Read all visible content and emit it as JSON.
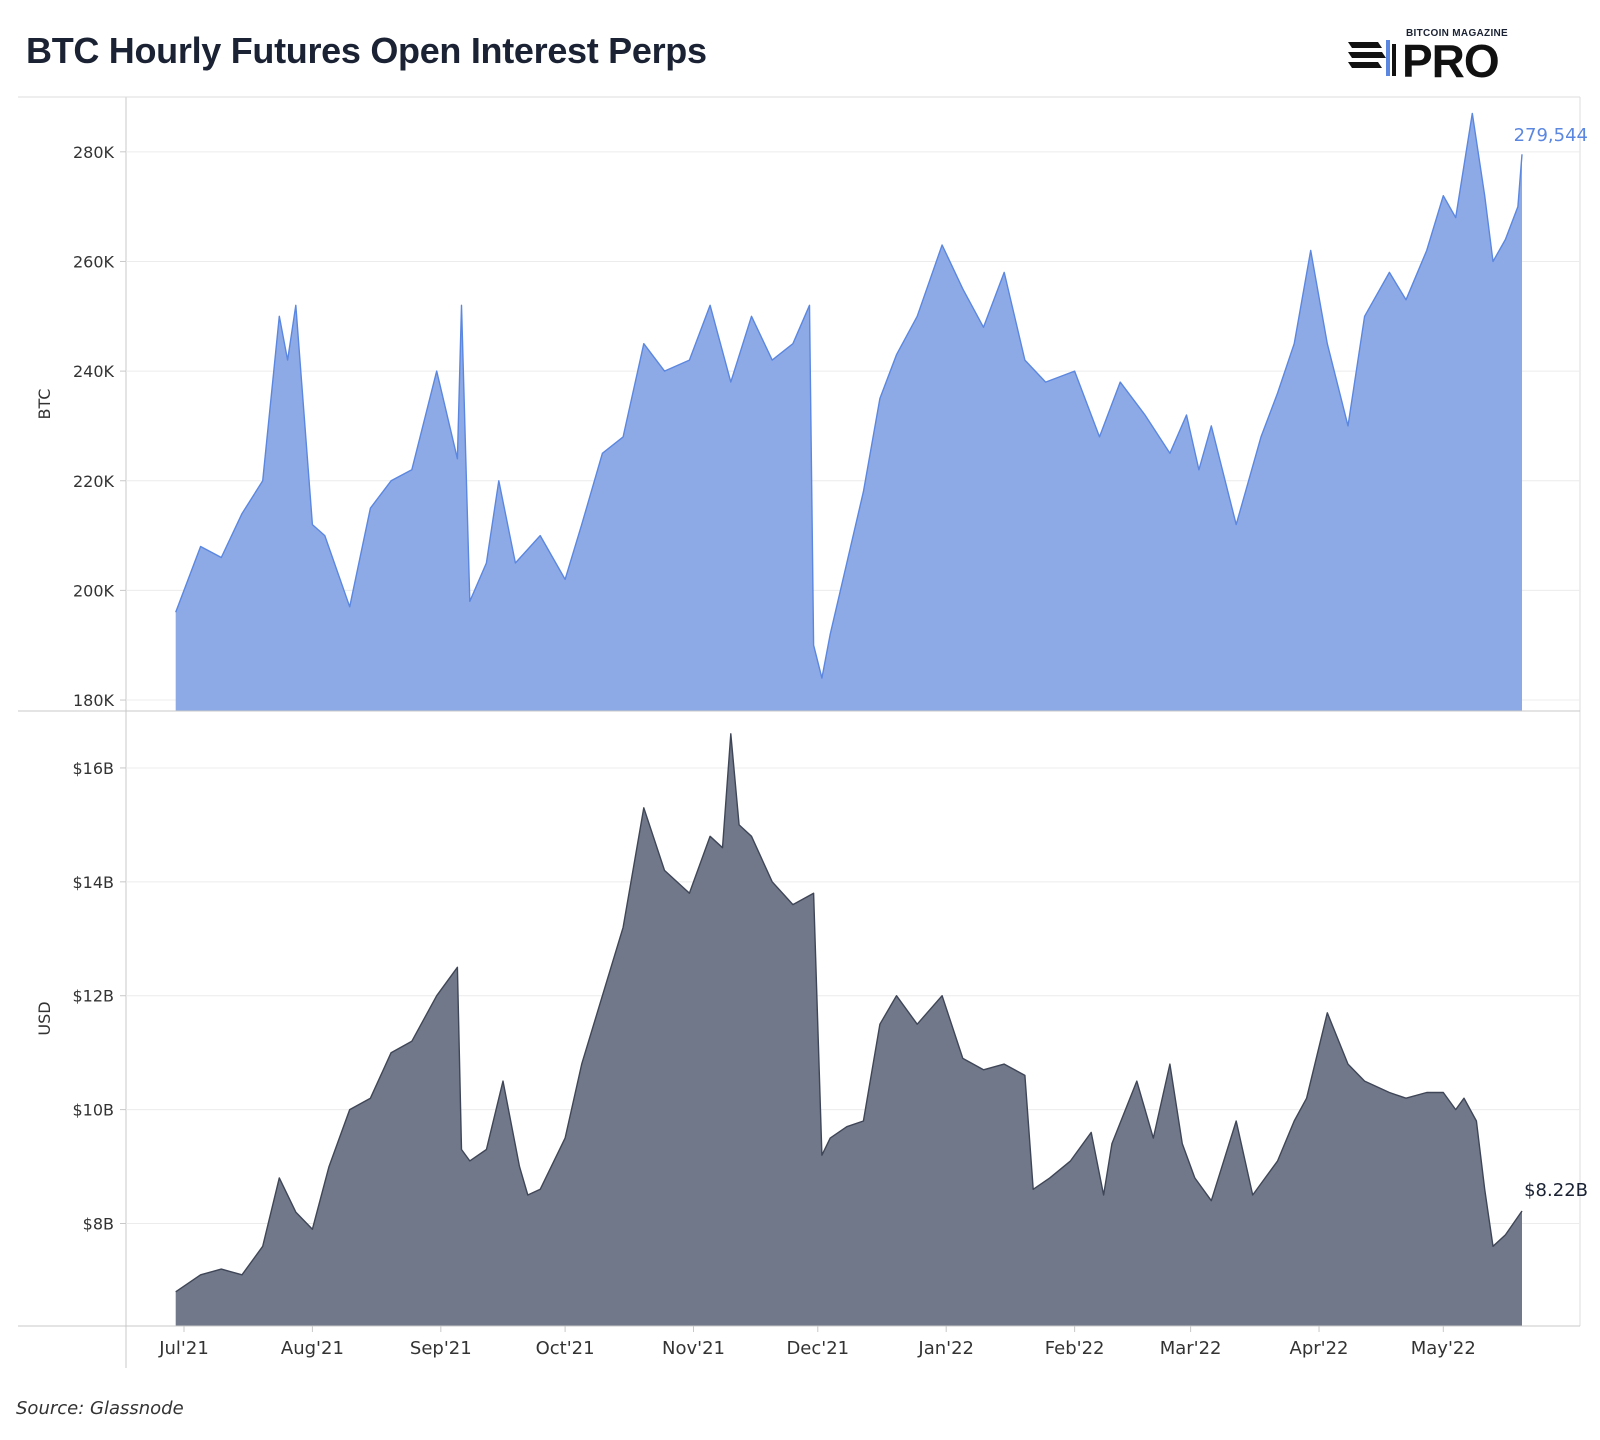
{
  "header": {
    "title": "BTC Hourly Futures Open Interest Perps",
    "logo_small": "BITCOIN MAGAZINE",
    "logo_big": "PRO"
  },
  "footer": {
    "source": "Source: Glassnode"
  },
  "chart_data": [
    {
      "type": "area",
      "ylabel": "BTC",
      "ylim": [
        178000,
        290000
      ],
      "yticks": [
        180000,
        200000,
        220000,
        240000,
        260000,
        280000
      ],
      "ytick_labels": [
        "180K",
        "200K",
        "220K",
        "240K",
        "260K",
        "280K"
      ],
      "color": "#5b87e0",
      "fill": "#8eaae6",
      "last_label": "279,544",
      "x": [
        "2021-06-29",
        "2021-07-05",
        "2021-07-10",
        "2021-07-15",
        "2021-07-20",
        "2021-07-24",
        "2021-07-26",
        "2021-07-28",
        "2021-08-01",
        "2021-08-04",
        "2021-08-10",
        "2021-08-15",
        "2021-08-20",
        "2021-08-25",
        "2021-08-31",
        "2021-09-05",
        "2021-09-06",
        "2021-09-08",
        "2021-09-12",
        "2021-09-15",
        "2021-09-19",
        "2021-09-25",
        "2021-10-01",
        "2021-10-05",
        "2021-10-10",
        "2021-10-15",
        "2021-10-20",
        "2021-10-25",
        "2021-10-31",
        "2021-11-05",
        "2021-11-10",
        "2021-11-15",
        "2021-11-20",
        "2021-11-25",
        "2021-11-29",
        "2021-11-30",
        "2021-12-02",
        "2021-12-04",
        "2021-12-08",
        "2021-12-12",
        "2021-12-16",
        "2021-12-20",
        "2021-12-25",
        "2021-12-31",
        "2022-01-05",
        "2022-01-10",
        "2022-01-15",
        "2022-01-20",
        "2022-01-25",
        "2022-02-01",
        "2022-02-07",
        "2022-02-12",
        "2022-02-18",
        "2022-02-24",
        "2022-02-28",
        "2022-03-03",
        "2022-03-06",
        "2022-03-12",
        "2022-03-18",
        "2022-03-22",
        "2022-03-26",
        "2022-03-30",
        "2022-04-03",
        "2022-04-08",
        "2022-04-12",
        "2022-04-18",
        "2022-04-22",
        "2022-04-27",
        "2022-05-01",
        "2022-05-04",
        "2022-05-08",
        "2022-05-11",
        "2022-05-13",
        "2022-05-16",
        "2022-05-19",
        "2022-05-20"
      ],
      "y": [
        196000,
        208000,
        206000,
        214000,
        220000,
        250000,
        242000,
        252000,
        212000,
        210000,
        197000,
        215000,
        220000,
        222000,
        240000,
        224000,
        252000,
        198000,
        205000,
        220000,
        205000,
        210000,
        202000,
        212000,
        225000,
        228000,
        245000,
        240000,
        242000,
        252000,
        238000,
        250000,
        242000,
        245000,
        252000,
        190000,
        184000,
        192000,
        205000,
        218000,
        235000,
        243000,
        250000,
        263000,
        255000,
        248000,
        258000,
        242000,
        238000,
        240000,
        228000,
        238000,
        232000,
        225000,
        232000,
        222000,
        230000,
        212000,
        228000,
        236000,
        245000,
        262000,
        245000,
        230000,
        250000,
        258000,
        253000,
        262000,
        272000,
        268000,
        287000,
        272000,
        260000,
        264000,
        270000,
        279544
      ]
    },
    {
      "type": "area",
      "ylabel": "USD",
      "ylim": [
        6200000000,
        17000000000
      ],
      "yticks": [
        8000000000,
        10000000000,
        12000000000,
        14000000000,
        16000000000
      ],
      "ytick_labels": [
        "$8B",
        "$10B",
        "$12B",
        "$14B",
        "$16B"
      ],
      "color": "#3f4657",
      "fill": "#717889",
      "last_label": "$8.22B",
      "x": [
        "2021-06-29",
        "2021-07-05",
        "2021-07-10",
        "2021-07-15",
        "2021-07-20",
        "2021-07-24",
        "2021-07-28",
        "2021-08-01",
        "2021-08-05",
        "2021-08-10",
        "2021-08-15",
        "2021-08-20",
        "2021-08-25",
        "2021-08-31",
        "2021-09-05",
        "2021-09-06",
        "2021-09-08",
        "2021-09-12",
        "2021-09-16",
        "2021-09-20",
        "2021-09-22",
        "2021-09-25",
        "2021-10-01",
        "2021-10-05",
        "2021-10-10",
        "2021-10-15",
        "2021-10-20",
        "2021-10-25",
        "2021-10-31",
        "2021-11-05",
        "2021-11-08",
        "2021-11-10",
        "2021-11-12",
        "2021-11-15",
        "2021-11-20",
        "2021-11-25",
        "2021-11-30",
        "2021-12-02",
        "2021-12-04",
        "2021-12-08",
        "2021-12-12",
        "2021-12-16",
        "2021-12-20",
        "2021-12-25",
        "2021-12-31",
        "2022-01-05",
        "2022-01-10",
        "2022-01-15",
        "2022-01-20",
        "2022-01-22",
        "2022-01-26",
        "2022-01-31",
        "2022-02-05",
        "2022-02-08",
        "2022-02-10",
        "2022-02-16",
        "2022-02-20",
        "2022-02-24",
        "2022-02-27",
        "2022-03-02",
        "2022-03-06",
        "2022-03-12",
        "2022-03-16",
        "2022-03-22",
        "2022-03-26",
        "2022-03-29",
        "2022-04-03",
        "2022-04-08",
        "2022-04-12",
        "2022-04-18",
        "2022-04-22",
        "2022-04-27",
        "2022-05-01",
        "2022-05-04",
        "2022-05-06",
        "2022-05-09",
        "2022-05-11",
        "2022-05-13",
        "2022-05-16",
        "2022-05-20"
      ],
      "y": [
        6800000000,
        7100000000,
        7200000000,
        7100000000,
        7600000000,
        8800000000,
        8200000000,
        7900000000,
        9000000000,
        10000000000,
        10200000000,
        11000000000,
        11200000000,
        12000000000,
        12500000000,
        9300000000,
        9100000000,
        9300000000,
        10500000000,
        9000000000,
        8500000000,
        8600000000,
        9500000000,
        10800000000,
        12000000000,
        13200000000,
        15300000000,
        14200000000,
        13800000000,
        14800000000,
        14600000000,
        16600000000,
        15000000000,
        14800000000,
        14000000000,
        13600000000,
        13800000000,
        9200000000,
        9500000000,
        9700000000,
        9800000000,
        11500000000,
        12000000000,
        11500000000,
        12000000000,
        10900000000,
        10700000000,
        10800000000,
        10600000000,
        8600000000,
        8800000000,
        9100000000,
        9600000000,
        8500000000,
        9400000000,
        10500000000,
        9500000000,
        10800000000,
        9400000000,
        8800000000,
        8400000000,
        9800000000,
        8500000000,
        9100000000,
        9800000000,
        10200000000,
        11700000000,
        10800000000,
        10500000000,
        10300000000,
        10200000000,
        10300000000,
        10300000000,
        10000000000,
        10200000000,
        9800000000,
        8600000000,
        7600000000,
        7800000000,
        8220000000
      ]
    }
  ],
  "x_axis": {
    "ticks": [
      "2021-07-01",
      "2021-08-01",
      "2021-09-01",
      "2021-10-01",
      "2021-11-01",
      "2021-12-01",
      "2022-01-01",
      "2022-02-01",
      "2022-03-01",
      "2022-04-01",
      "2022-05-01"
    ],
    "labels": [
      "Jul'21",
      "Aug'21",
      "Sep'21",
      "Oct'21",
      "Nov'21",
      "Dec'21",
      "Jan'22",
      "Feb'22",
      "Mar'22",
      "Apr'22",
      "May'22"
    ],
    "range": [
      "2021-06-17",
      "2022-06-03"
    ]
  }
}
